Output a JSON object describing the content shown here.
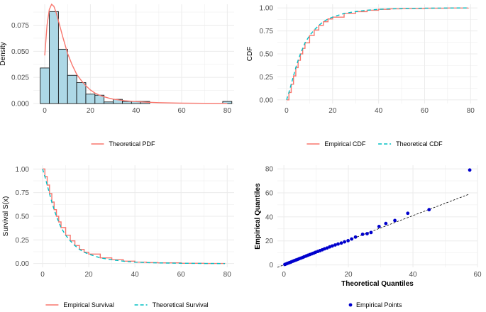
{
  "colors": {
    "pdf_line": "#f8766d",
    "theory_dash": "#00bfc4",
    "bars": "#add8e6",
    "points": "#0000cd",
    "grid": "#ebebeb",
    "ref_line": "#000000"
  },
  "chart_data": [
    {
      "type": "bar",
      "title": "",
      "xlabel": "",
      "ylabel": "Density",
      "xlim": [
        -5,
        83
      ],
      "ylim": [
        0,
        0.095
      ],
      "xticks": [
        "0",
        "20",
        "40",
        "60",
        "80"
      ],
      "yticks": [
        "0.000",
        "0.025",
        "0.050",
        "0.075"
      ],
      "bin_edges": [
        -2,
        2,
        6,
        10,
        14,
        18,
        22,
        26,
        30,
        34,
        38,
        42,
        46,
        50,
        54,
        58,
        62,
        66,
        70,
        74,
        78,
        82
      ],
      "values": [
        0.034,
        0.088,
        0.052,
        0.027,
        0.02,
        0.009,
        0.008,
        0.0015,
        0.004,
        0.002,
        0.002,
        0.002,
        0.0,
        0.0,
        0.0,
        0.0,
        0.0,
        0.0,
        0.0,
        0.0,
        0.002
      ],
      "series": [
        {
          "name": "Theoretical PDF",
          "type": "line",
          "x": [
            0,
            1,
            2,
            3,
            4,
            5,
            6,
            7,
            8,
            10,
            12,
            14,
            16,
            18,
            20,
            22,
            24,
            26,
            28,
            30,
            35,
            40,
            45,
            50,
            60,
            70,
            80
          ],
          "values": [
            0.046,
            0.075,
            0.09,
            0.095,
            0.093,
            0.087,
            0.079,
            0.071,
            0.063,
            0.048,
            0.037,
            0.028,
            0.022,
            0.017,
            0.013,
            0.01,
            0.008,
            0.0065,
            0.0052,
            0.0042,
            0.0027,
            0.0018,
            0.0012,
            0.0008,
            0.0004,
            0.0002,
            0.0001
          ]
        }
      ],
      "legend": [
        "Theoretical PDF"
      ],
      "legend_position": "bottom"
    },
    {
      "type": "line",
      "title": "",
      "xlabel": "",
      "ylabel": "CDF",
      "xlim": [
        -4,
        83
      ],
      "ylim": [
        -0.04,
        1.04
      ],
      "xticks": [
        "0",
        "20",
        "40",
        "60",
        "80"
      ],
      "yticks": [
        "0.00",
        "0.25",
        "0.50",
        "0.75",
        "1.00"
      ],
      "series": [
        {
          "name": "Empirical CDF",
          "style": "solid",
          "x": [
            0,
            1,
            2,
            3,
            4,
            5,
            6,
            7,
            8,
            10,
            12,
            14,
            16,
            18,
            20,
            25,
            30,
            35,
            40,
            45,
            50,
            60,
            70,
            79
          ],
          "values": [
            0.0,
            0.08,
            0.17,
            0.26,
            0.35,
            0.43,
            0.5,
            0.56,
            0.62,
            0.7,
            0.76,
            0.81,
            0.85,
            0.88,
            0.9,
            0.94,
            0.96,
            0.975,
            0.985,
            0.99,
            0.993,
            0.997,
            0.999,
            1.0
          ]
        },
        {
          "name": "Theoretical CDF",
          "style": "dashed",
          "x": [
            0,
            1,
            2,
            3,
            4,
            5,
            6,
            7,
            8,
            10,
            12,
            14,
            16,
            18,
            20,
            25,
            30,
            35,
            40,
            45,
            50,
            60,
            70,
            79
          ],
          "values": [
            0.0,
            0.08,
            0.17,
            0.26,
            0.35,
            0.43,
            0.5,
            0.56,
            0.62,
            0.7,
            0.76,
            0.81,
            0.85,
            0.88,
            0.9,
            0.94,
            0.96,
            0.975,
            0.985,
            0.99,
            0.993,
            0.997,
            0.999,
            1.0
          ]
        }
      ],
      "legend": [
        "Empirical CDF",
        "Theoretical CDF"
      ],
      "legend_position": "bottom"
    },
    {
      "type": "line",
      "title": "",
      "xlabel": "",
      "ylabel": "Survival S(x)",
      "xlim": [
        -4,
        83
      ],
      "ylim": [
        -0.04,
        1.04
      ],
      "xticks": [
        "0",
        "20",
        "40",
        "60",
        "80"
      ],
      "yticks": [
        "0.00",
        "0.25",
        "0.50",
        "0.75",
        "1.00"
      ],
      "series": [
        {
          "name": "Empirical Survival",
          "style": "solid",
          "x": [
            0,
            1,
            2,
            3,
            4,
            5,
            6,
            7,
            8,
            10,
            12,
            14,
            16,
            18,
            20,
            25,
            30,
            35,
            40,
            45,
            50,
            60,
            70,
            79
          ],
          "values": [
            1.0,
            0.92,
            0.83,
            0.74,
            0.65,
            0.57,
            0.5,
            0.44,
            0.38,
            0.3,
            0.24,
            0.19,
            0.15,
            0.12,
            0.1,
            0.06,
            0.04,
            0.025,
            0.015,
            0.01,
            0.007,
            0.003,
            0.001,
            0.0
          ]
        },
        {
          "name": "Theoretical Survival",
          "style": "dashed",
          "x": [
            0,
            1,
            2,
            3,
            4,
            5,
            6,
            7,
            8,
            10,
            12,
            14,
            16,
            18,
            20,
            25,
            30,
            35,
            40,
            45,
            50,
            60,
            70,
            79
          ],
          "values": [
            1.0,
            0.92,
            0.83,
            0.74,
            0.65,
            0.57,
            0.5,
            0.44,
            0.38,
            0.3,
            0.24,
            0.19,
            0.15,
            0.12,
            0.1,
            0.06,
            0.04,
            0.025,
            0.015,
            0.01,
            0.007,
            0.003,
            0.001,
            0.0
          ]
        }
      ],
      "legend": [
        "Empirical Survival",
        "Theoretical Survival"
      ],
      "legend_position": "bottom"
    },
    {
      "type": "scatter",
      "title": "",
      "xlabel": "Theoretical Quantiles",
      "ylabel": "Empirical Quantiles",
      "xlim": [
        -2,
        60
      ],
      "ylim": [
        -2,
        83
      ],
      "xticks": [
        "0",
        "20",
        "40",
        "60"
      ],
      "yticks": [
        "0",
        "20",
        "40",
        "60",
        "80"
      ],
      "reference_line": {
        "x": [
          -2,
          57.5
        ],
        "y": [
          -2,
          59
        ]
      },
      "series": [
        {
          "name": "Empirical Points",
          "x": [
            0.3,
            0.8,
            1.2,
            1.7,
            2.2,
            2.7,
            3.2,
            3.7,
            4.2,
            4.7,
            5.2,
            5.8,
            6.3,
            6.9,
            7.4,
            8.0,
            8.6,
            9.2,
            9.8,
            10.5,
            11.2,
            11.9,
            12.6,
            13.4,
            14.2,
            15.0,
            15.9,
            16.8,
            17.8,
            18.8,
            19.9,
            21.0,
            22.2,
            24.4,
            25.8,
            27.0,
            29.5,
            31.6,
            34.4,
            38.4,
            45.0,
            57.6
          ],
          "values": [
            0.4,
            0.9,
            1.4,
            1.9,
            2.4,
            3.0,
            3.5,
            4.0,
            4.5,
            5.1,
            5.6,
            6.2,
            6.8,
            7.4,
            8.0,
            8.6,
            9.2,
            9.8,
            10.5,
            11.2,
            11.9,
            12.6,
            13.4,
            14.1,
            15.0,
            15.8,
            16.6,
            17.4,
            18.2,
            19.2,
            20.2,
            21.6,
            23.2,
            25.5,
            26.0,
            27.0,
            32.0,
            34.5,
            37.0,
            43.0,
            46.0,
            79.0
          ]
        }
      ],
      "legend": [
        "Empirical Points"
      ],
      "legend_position": "bottom"
    }
  ]
}
